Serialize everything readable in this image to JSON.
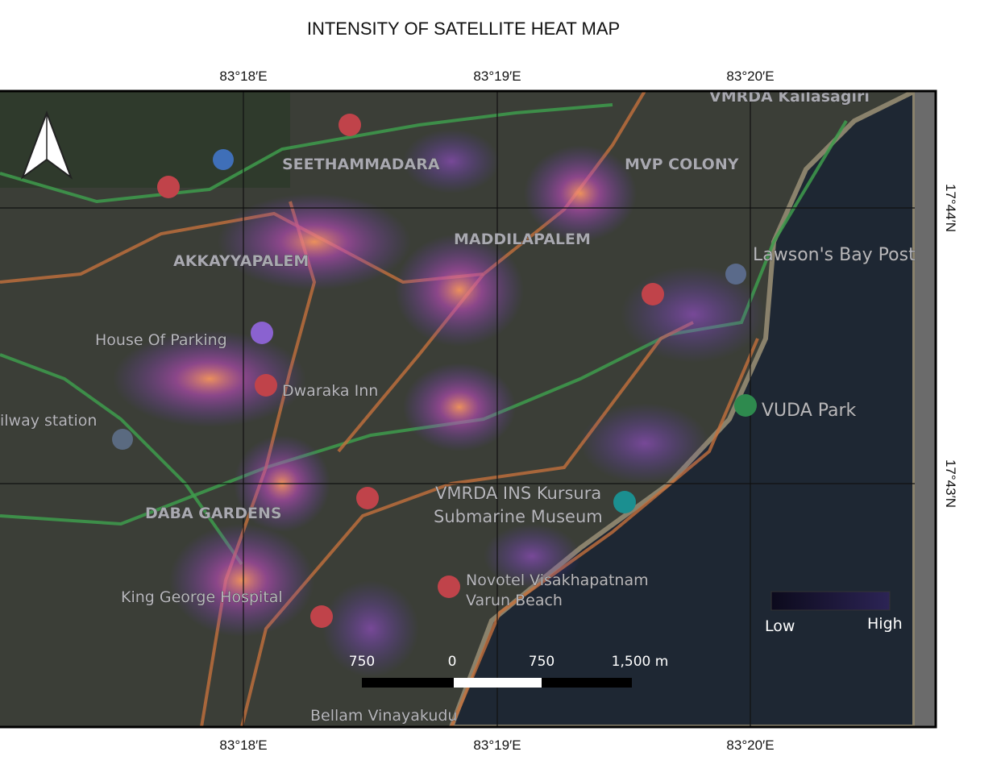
{
  "title": "INTENSITY OF SATELLITE HEAT MAP",
  "graticule": {
    "top": [
      "83°18′E",
      "83°19′E",
      "83°20′E"
    ],
    "bottom": [
      "83°18′E",
      "83°19′E",
      "83°20′E"
    ],
    "right": [
      "17°44′N",
      "17°43′N"
    ]
  },
  "places": [
    "SEETHAMMADARA",
    "MVP COLONY",
    "MADDILAPALEM",
    "AKKAYYAPALEM",
    "Lawson's Bay Post",
    "House Of Parking",
    "Dwaraka Inn",
    "ilway station",
    "VUDA Park",
    "VMRDA INS Kursura",
    "Submarine Museum",
    "DABA GARDENS",
    "King George Hospital",
    "Novotel Visakhapatnam",
    "Varun Beach",
    "Bellam Vinayakudu",
    "VMRDA Kailasagiri"
  ],
  "scale_bar": [
    "750",
    "0",
    "750",
    "1,500 m"
  ],
  "legend": {
    "low": "Low",
    "high": "High"
  }
}
